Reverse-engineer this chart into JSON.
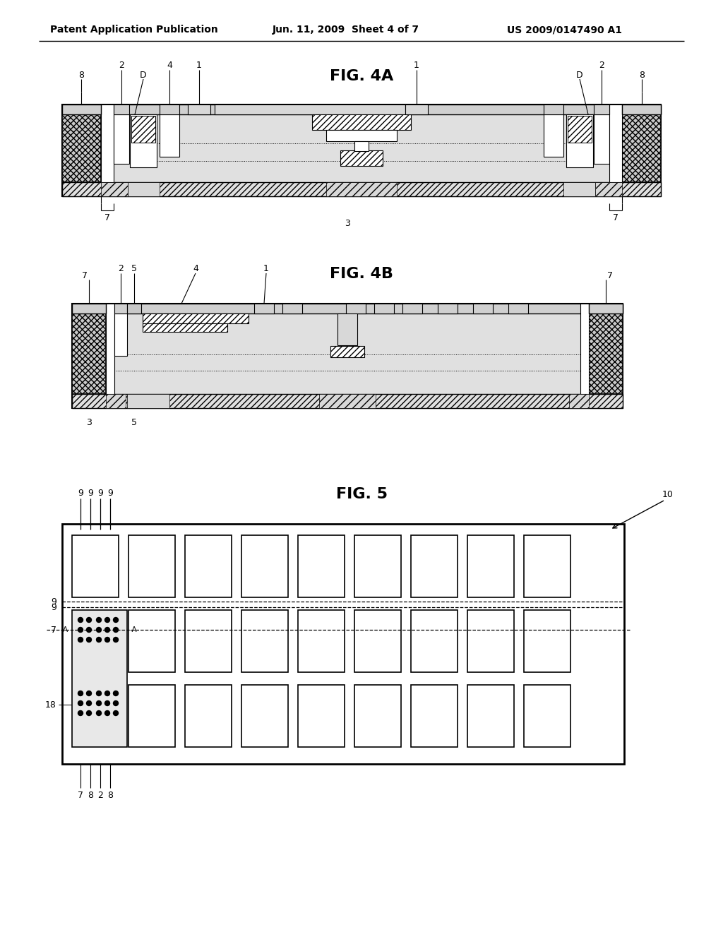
{
  "bg_color": "#ffffff",
  "header_left": "Patent Application Publication",
  "header_mid": "Jun. 11, 2009  Sheet 4 of 7",
  "header_right": "US 2009/0147490 A1",
  "fig4a_title": "FIG. 4A",
  "fig4b_title": "FIG. 4B",
  "fig5_title": "FIG. 5",
  "gray_light": "#d8d8d8",
  "gray_hatch": "#c0c0c0",
  "gray_dark": "#909090",
  "gray_medium": "#b8b8b8"
}
